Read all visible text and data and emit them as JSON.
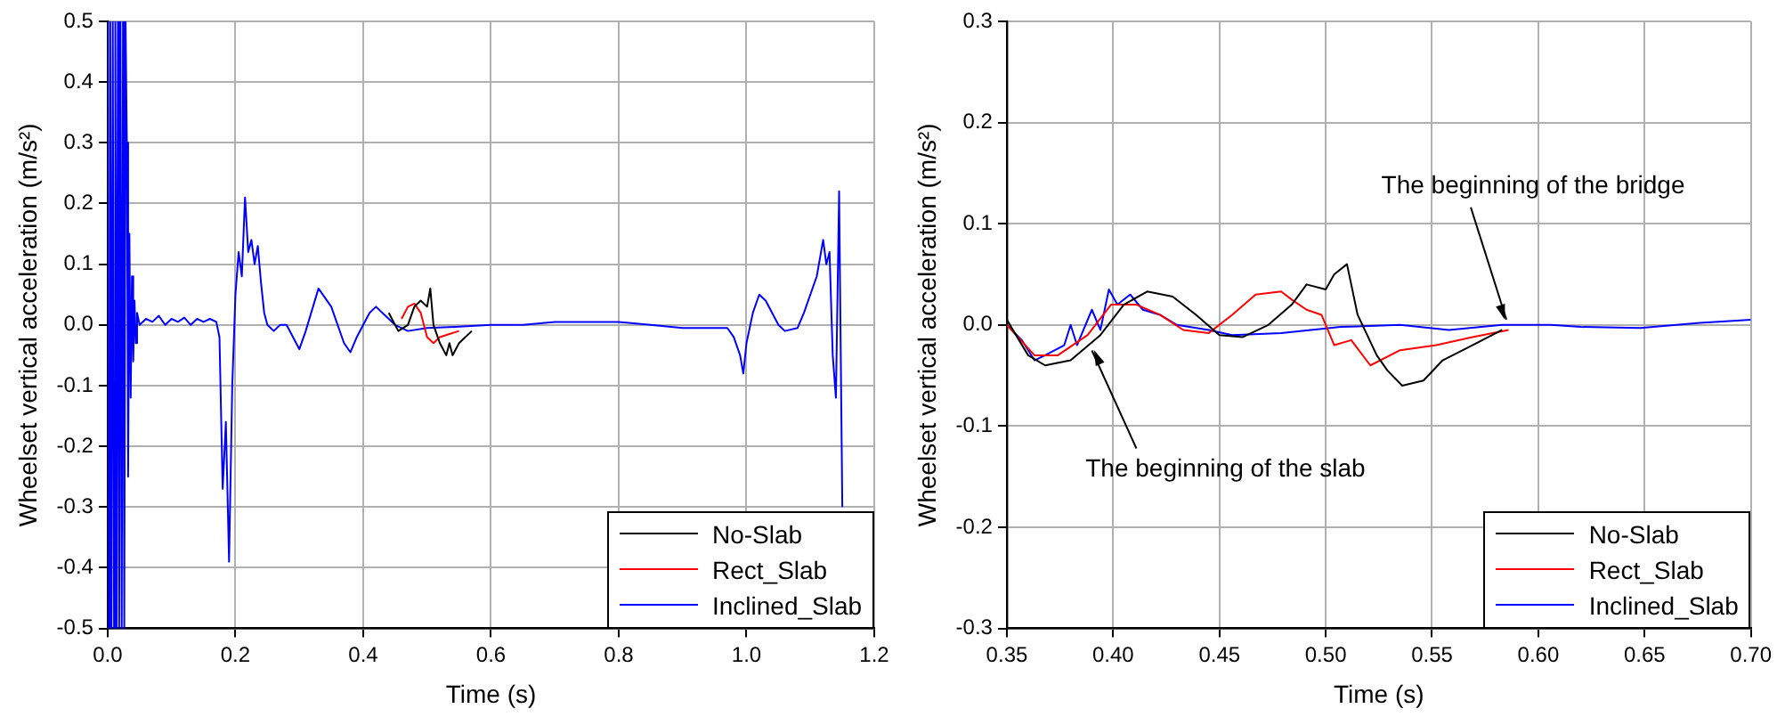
{
  "chart_data": [
    {
      "type": "line",
      "xlabel": "Time (s)",
      "ylabel": "Wheelset vertical acceleration (m/s²)",
      "xlim": [
        0,
        1.2
      ],
      "ylim": [
        -0.5,
        0.5
      ],
      "xticks": [
        {
          "value": 0,
          "label": "0.0"
        },
        0.2,
        0.4,
        0.6,
        0.8,
        {
          "value": 1,
          "label": "1.0"
        },
        1.2
      ],
      "yticks": [
        -0.5,
        -0.4,
        -0.3,
        -0.2,
        -0.1,
        {
          "value": 0,
          "label": "0.0"
        },
        0.1,
        0.2,
        0.3,
        0.4,
        0.5
      ],
      "grid": true,
      "legend": "bottom right",
      "marker": "none",
      "line_style": "solid",
      "series": [
        {
          "name": "No-Slab",
          "color": "#000000",
          "x": [
            0.44,
            0.455,
            0.47,
            0.48,
            0.49,
            0.5,
            0.505,
            0.51,
            0.52,
            0.53,
            0.535,
            0.54,
            0.55,
            0.57
          ],
          "values": [
            0.02,
            -0.01,
            0,
            0.03,
            0.04,
            0.03,
            0.06,
            0,
            -0.03,
            -0.05,
            -0.03,
            -0.05,
            -0.03,
            -0.01
          ]
        },
        {
          "name": "Rect_Slab",
          "color": "#ff0000",
          "x": [
            0.46,
            0.47,
            0.48,
            0.49,
            0.5,
            0.51,
            0.52,
            0.55
          ],
          "values": [
            0.01,
            0.03,
            0.035,
            0.02,
            -0.02,
            -0.03,
            -0.02,
            -0.01
          ]
        },
        {
          "name": "Inclined_Slab",
          "color": "#0000ff",
          "x": [
            0,
            0.002,
            0.004,
            0.006,
            0.008,
            0.01,
            0.012,
            0.014,
            0.016,
            0.018,
            0.02,
            0.022,
            0.024,
            0.026,
            0.028,
            0.03,
            0.032,
            0.034,
            0.036,
            0.038,
            0.04,
            0.042,
            0.044,
            0.046,
            0.05,
            0.06,
            0.07,
            0.08,
            0.09,
            0.1,
            0.11,
            0.12,
            0.13,
            0.14,
            0.15,
            0.16,
            0.17,
            0.175,
            0.18,
            0.185,
            0.19,
            0.195,
            0.2,
            0.205,
            0.21,
            0.215,
            0.22,
            0.225,
            0.23,
            0.235,
            0.24,
            0.245,
            0.25,
            0.26,
            0.27,
            0.28,
            0.3,
            0.31,
            0.33,
            0.35,
            0.37,
            0.38,
            0.39,
            0.4,
            0.41,
            0.42,
            0.43,
            0.45,
            0.47,
            0.5,
            0.55,
            0.6,
            0.65,
            0.7,
            0.75,
            0.8,
            0.85,
            0.9,
            0.95,
            0.97,
            0.98,
            0.99,
            0.995,
            1.0,
            1.01,
            1.02,
            1.03,
            1.05,
            1.06,
            1.08,
            1.09,
            1.11,
            1.12,
            1.125,
            1.13,
            1.135,
            1.14,
            1.145,
            1.15
          ],
          "values": [
            0.5,
            -0.5,
            0.5,
            -0.5,
            0.5,
            -0.5,
            0.5,
            -0.5,
            0.5,
            -0.5,
            0.5,
            -0.5,
            0.5,
            -0.5,
            0.5,
            0.3,
            -0.25,
            0.15,
            -0.12,
            0.08,
            -0.06,
            0.04,
            -0.03,
            0.02,
            0,
            0.01,
            0.005,
            0.015,
            0,
            0.01,
            0.005,
            0.012,
            0,
            0.01,
            0.005,
            0.01,
            0.005,
            -0.02,
            -0.27,
            -0.16,
            -0.39,
            -0.1,
            0.05,
            0.12,
            0.08,
            0.21,
            0.12,
            0.14,
            0.1,
            0.13,
            0.07,
            0.02,
            0,
            -0.01,
            0,
            0,
            -0.04,
            -0.01,
            0.06,
            0.03,
            -0.03,
            -0.045,
            -0.02,
            0,
            0.02,
            0.03,
            0.02,
            0,
            -0.01,
            -0.005,
            -0.003,
            0,
            0,
            0.005,
            0.005,
            0.005,
            0,
            -0.005,
            -0.005,
            -0.005,
            -0.02,
            -0.05,
            -0.08,
            -0.03,
            0.02,
            0.05,
            0.04,
            0,
            -0.01,
            -0.005,
            0.02,
            0.08,
            0.14,
            0.1,
            0.12,
            -0.05,
            -0.12,
            0.22,
            -0.3
          ]
        }
      ]
    },
    {
      "type": "line",
      "xlabel": "Time (s)",
      "ylabel": "Wheelset vertical acceleration (m/s²)",
      "xlim": [
        0.35,
        0.7
      ],
      "ylim": [
        -0.3,
        0.3
      ],
      "xticks": [
        0.35,
        {
          "value": 0.4,
          "label": "0.40"
        },
        0.45,
        {
          "value": 0.5,
          "label": "0.50"
        },
        0.55,
        {
          "value": 0.6,
          "label": "0.60"
        },
        0.65,
        {
          "value": 0.7,
          "label": "0.70"
        }
      ],
      "yticks": [
        -0.3,
        -0.2,
        -0.1,
        {
          "value": 0,
          "label": "0.0"
        },
        0.1,
        0.2,
        0.3
      ],
      "grid": true,
      "legend": "bottom right",
      "marker": "none",
      "line_style": "solid",
      "annotations": [
        {
          "text": "The beginning of the bridge",
          "x": 0.585,
          "y": 0
        },
        {
          "text": "The beginning of the slab",
          "x": 0.39,
          "y": -0.02
        }
      ],
      "series": [
        {
          "name": "No-Slab",
          "color": "#000000",
          "x": [
            0.35,
            0.36,
            0.368,
            0.38,
            0.394,
            0.405,
            0.416,
            0.428,
            0.439,
            0.45,
            0.461,
            0.473,
            0.484,
            0.491,
            0.5,
            0.504,
            0.51,
            0.515,
            0.524,
            0.529,
            0.536,
            0.546,
            0.555,
            0.569,
            0.583
          ],
          "values": [
            0.005,
            -0.03,
            -0.04,
            -0.035,
            -0.01,
            0.02,
            0.033,
            0.028,
            0.01,
            -0.01,
            -0.012,
            0,
            0.02,
            0.04,
            0.035,
            0.05,
            0.06,
            0.01,
            -0.03,
            -0.045,
            -0.06,
            -0.055,
            -0.035,
            -0.02,
            -0.005
          ]
        },
        {
          "name": "Rect_Slab",
          "color": "#ff0000",
          "x": [
            0.35,
            0.363,
            0.374,
            0.388,
            0.399,
            0.411,
            0.422,
            0.433,
            0.445,
            0.456,
            0.467,
            0.479,
            0.484,
            0.491,
            0.498,
            0.504,
            0.512,
            0.521,
            0.535,
            0.552,
            0.569,
            0.586
          ],
          "values": [
            0,
            -0.03,
            -0.03,
            -0.01,
            0.02,
            0.02,
            0.01,
            -0.005,
            -0.008,
            0.01,
            0.03,
            0.033,
            0.025,
            0.015,
            0.01,
            -0.02,
            -0.015,
            -0.04,
            -0.025,
            -0.02,
            -0.012,
            -0.005
          ]
        },
        {
          "name": "Inclined_Slab",
          "color": "#0000ff",
          "x": [
            0.35,
            0.357,
            0.363,
            0.368,
            0.377,
            0.38,
            0.383,
            0.39,
            0.394,
            0.398,
            0.402,
            0.408,
            0.414,
            0.422,
            0.43,
            0.445,
            0.456,
            0.479,
            0.507,
            0.535,
            0.558,
            0.583,
            0.606,
            0.62,
            0.648,
            0.676,
            0.7
          ],
          "values": [
            0,
            -0.015,
            -0.035,
            -0.03,
            -0.02,
            0,
            -0.02,
            0.015,
            -0.005,
            0.035,
            0.02,
            0.03,
            0.015,
            0.01,
            0,
            -0.005,
            -0.01,
            -0.008,
            -0.002,
            0,
            -0.005,
            0,
            0,
            -0.002,
            -0.003,
            0.002,
            0.005
          ]
        }
      ]
    }
  ]
}
